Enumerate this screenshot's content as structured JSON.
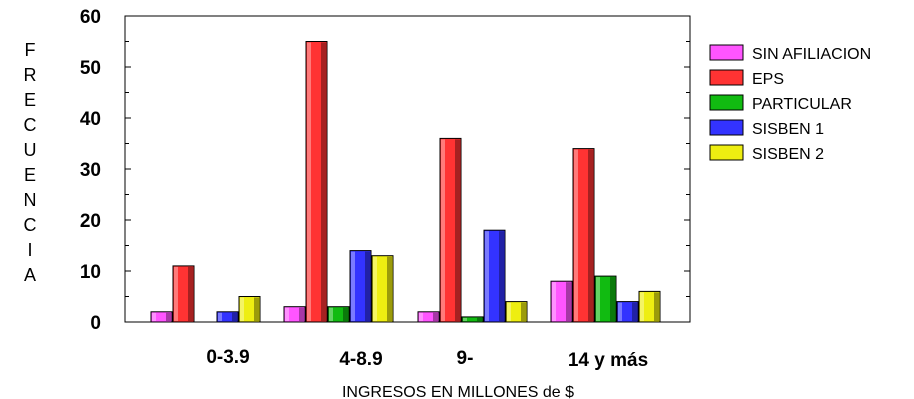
{
  "chart_data": {
    "type": "bar",
    "title": "",
    "xlabel": "INGRESOS EN MILLONES de $",
    "ylabel": "FRECUENCIA",
    "ylim": [
      0,
      60
    ],
    "yticks": [
      "0",
      "10",
      "20",
      "30",
      "40",
      "50",
      "60"
    ],
    "categories": [
      "0-3.9",
      "4-8.9",
      "9-",
      "14 y más"
    ],
    "grid": false,
    "legend_position": "right",
    "series": [
      {
        "name": "SIN AFILIACION",
        "color": "#ff55ff",
        "values": [
          2,
          3,
          2,
          8
        ]
      },
      {
        "name": "EPS",
        "color": "#ff3333",
        "values": [
          11,
          55,
          36,
          34
        ]
      },
      {
        "name": "PARTICULAR",
        "color": "#11bb11",
        "values": [
          0,
          3,
          1,
          9
        ]
      },
      {
        "name": "SISBEN 1",
        "color": "#3333ff",
        "values": [
          2,
          14,
          18,
          4
        ]
      },
      {
        "name": "SISBEN 2",
        "color": "#eeee11",
        "values": [
          5,
          13,
          4,
          6
        ]
      }
    ]
  }
}
